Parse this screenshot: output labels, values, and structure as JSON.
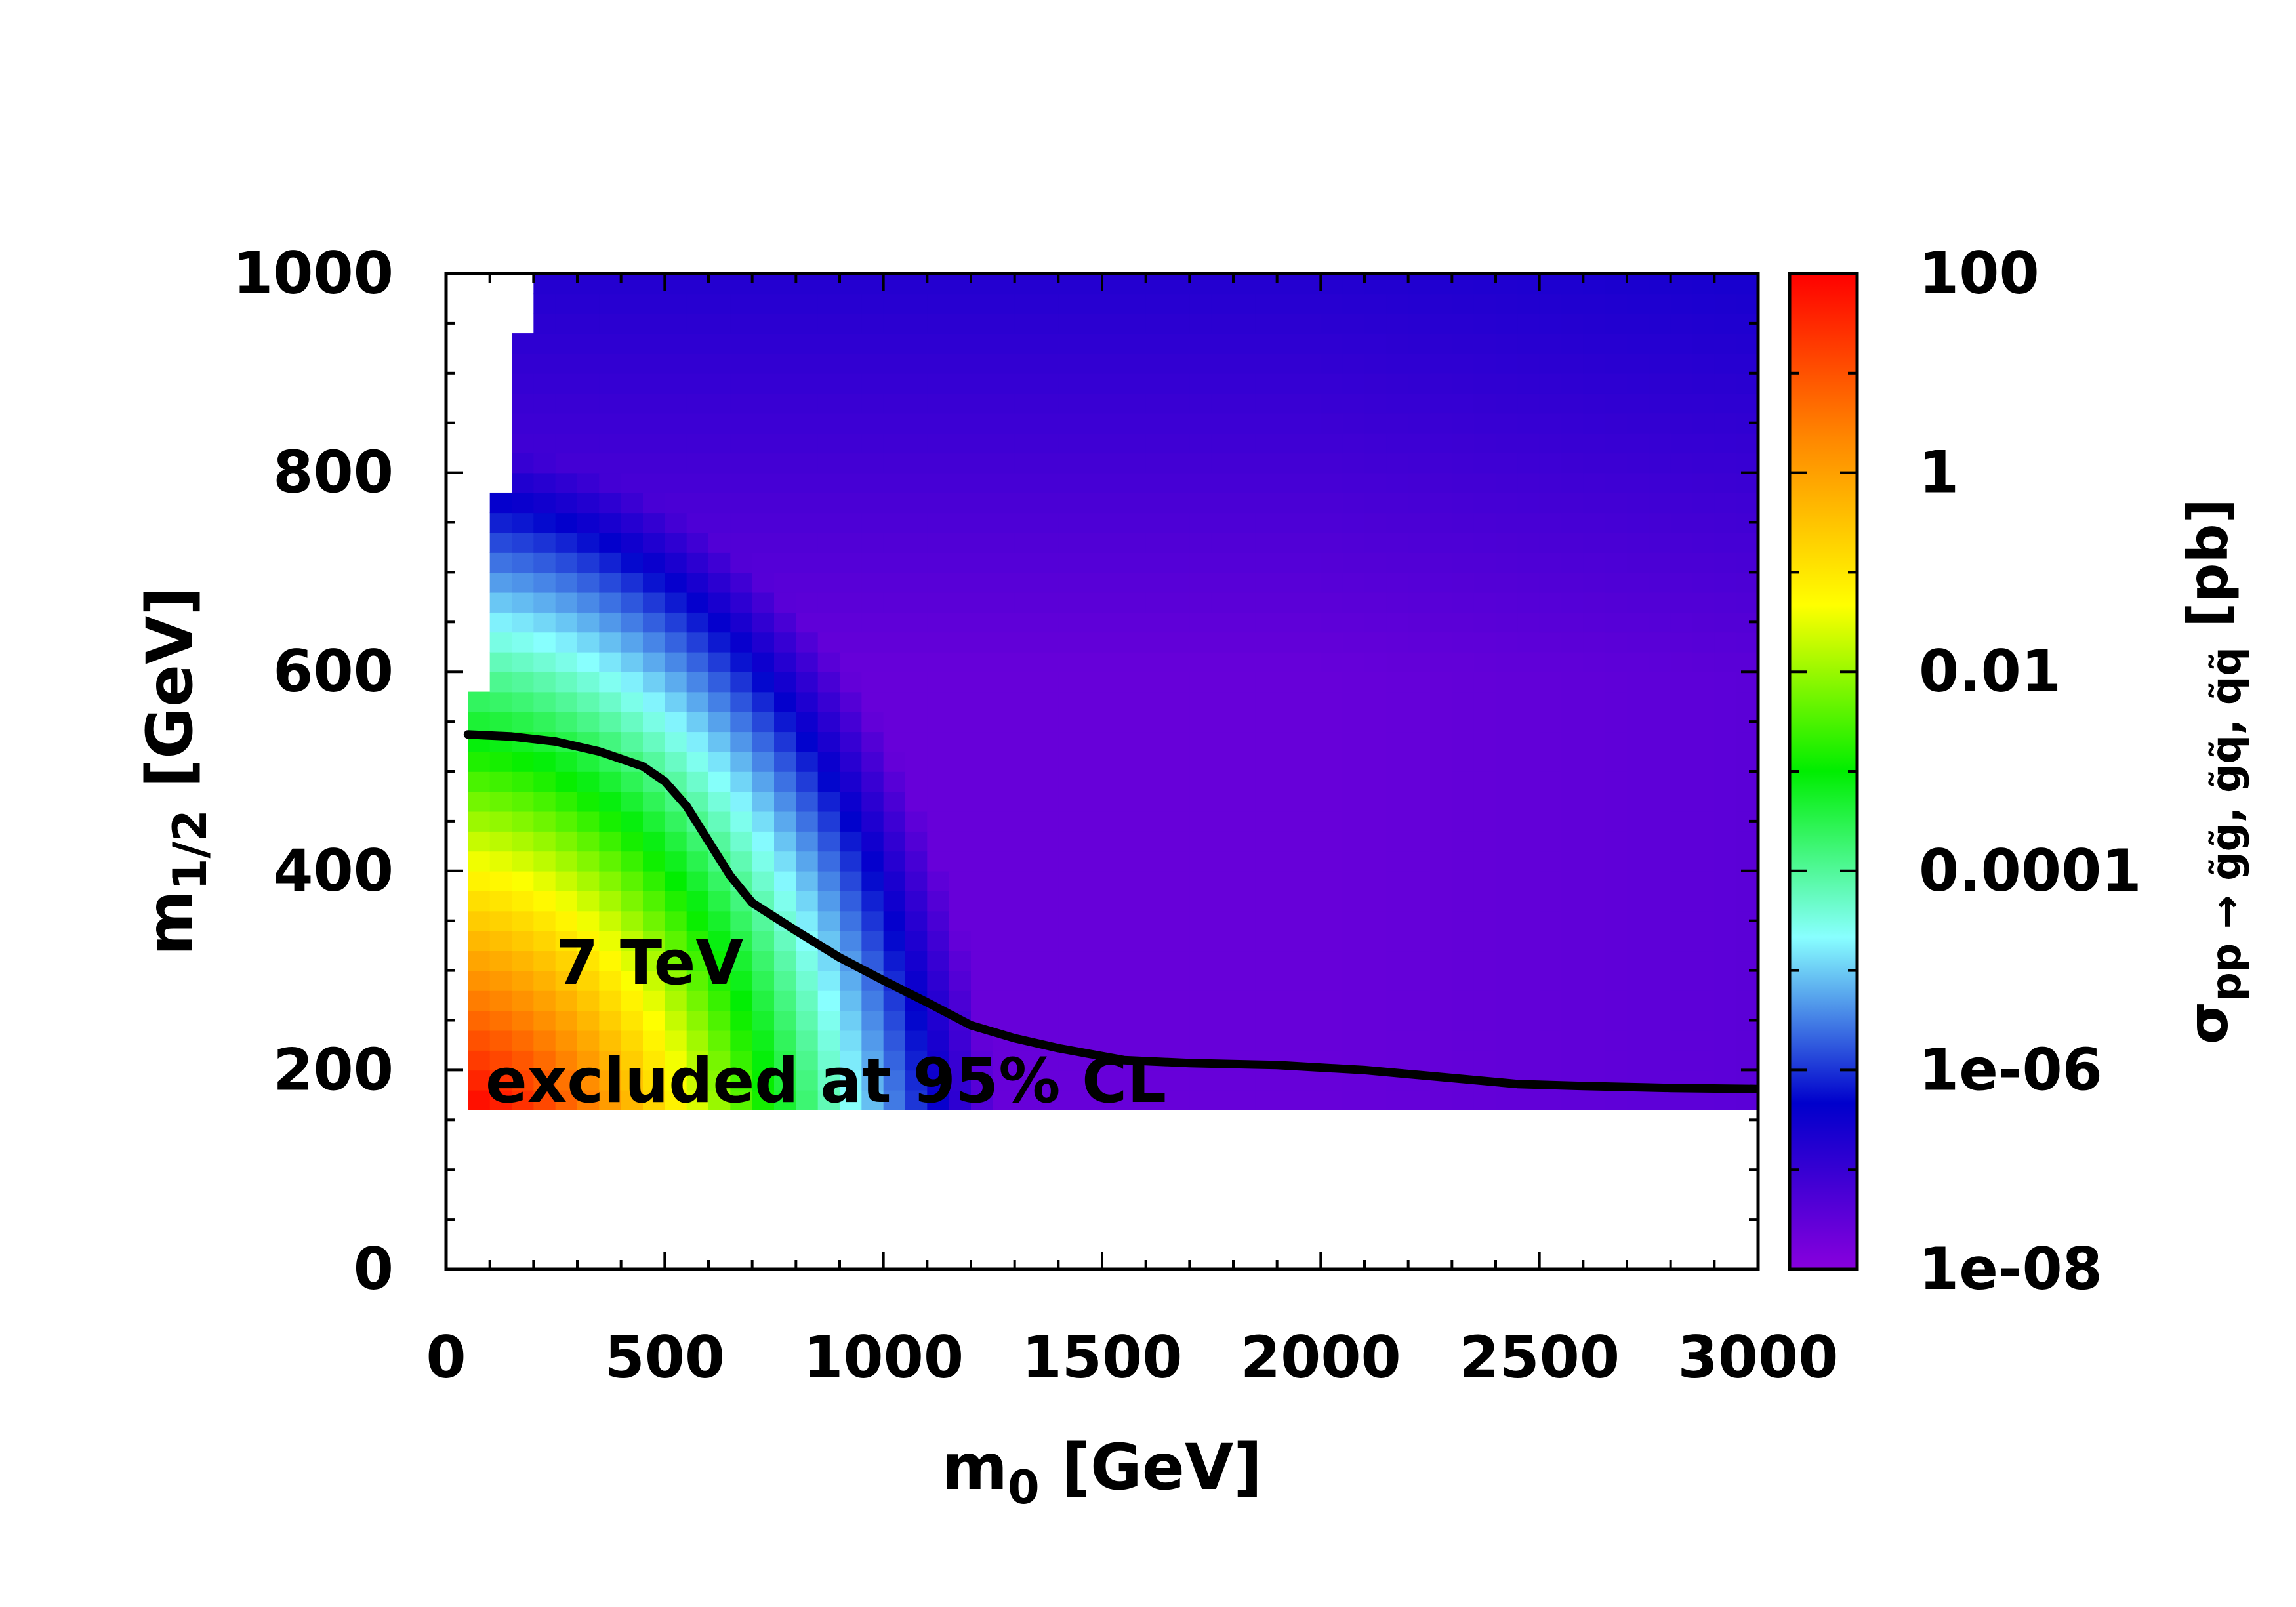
{
  "chart_data": {
    "type": "heatmap",
    "title": "",
    "xlabel_main": "m",
    "xlabel_sub": "0",
    "xlabel_unit": " [GeV]",
    "ylabel_main": "m",
    "ylabel_sub": "1/2",
    "ylabel_unit": " [GeV]",
    "xlim": [
      0,
      3000
    ],
    "ylim": [
      0,
      1000
    ],
    "x_ticks": [
      0,
      500,
      1000,
      1500,
      2000,
      2500,
      3000
    ],
    "x_tick_labels": [
      "0",
      "500",
      "1000",
      "1500",
      "2000",
      "2500",
      "3000"
    ],
    "y_ticks": [
      0,
      200,
      400,
      600,
      800,
      1000
    ],
    "y_tick_labels": [
      "0",
      "200",
      "400",
      "600",
      "800",
      "1000"
    ],
    "colorbar": {
      "label_main": "σ",
      "label_sub": "pp → g̃g̃, g̃q̃, q̃q̃",
      "label_unit": " [pb]",
      "scale": "log10",
      "range_log10": [
        -8,
        2
      ],
      "ticks_log10": [
        2,
        0,
        -2,
        -4,
        -6,
        -8
      ],
      "tick_labels": [
        "100",
        "1",
        "0.01",
        "0.0001",
        "1e-06",
        "1e-08"
      ],
      "palette": [
        "#8800dd",
        "#0000cc",
        "#88ffff",
        "#00ee00",
        "#ffff00",
        "#ff8800",
        "#ff0000"
      ]
    },
    "grid": {
      "m0_step": 50,
      "m12_step": 20,
      "m12_min": 160,
      "m12_max": 1000,
      "m0_max": 3000,
      "lower_left_boundary": [
        {
          "m12_max": 570,
          "m0_min": 50
        },
        {
          "m12_max": 770,
          "m0_min": 100
        },
        {
          "m12_max": 930,
          "m0_min": 150
        },
        {
          "m12_max": 1000,
          "m0_min": 200
        }
      ]
    },
    "exclusion_contour": {
      "name": "7 TeV excluded at 95% CL",
      "x": [
        50,
        150,
        250,
        350,
        450,
        500,
        550,
        600,
        650,
        700,
        800,
        900,
        1000,
        1100,
        1200,
        1300,
        1400,
        1550,
        1700,
        1900,
        2100,
        2300,
        2450,
        2600,
        2800,
        3000
      ],
      "y": [
        537,
        535,
        530,
        520,
        505,
        490,
        465,
        430,
        395,
        368,
        340,
        313,
        290,
        268,
        245,
        232,
        222,
        210,
        207,
        205,
        200,
        192,
        186,
        184,
        182,
        181
      ]
    },
    "annotations": [
      "7 TeV",
      "excluded at 95% CL"
    ]
  }
}
